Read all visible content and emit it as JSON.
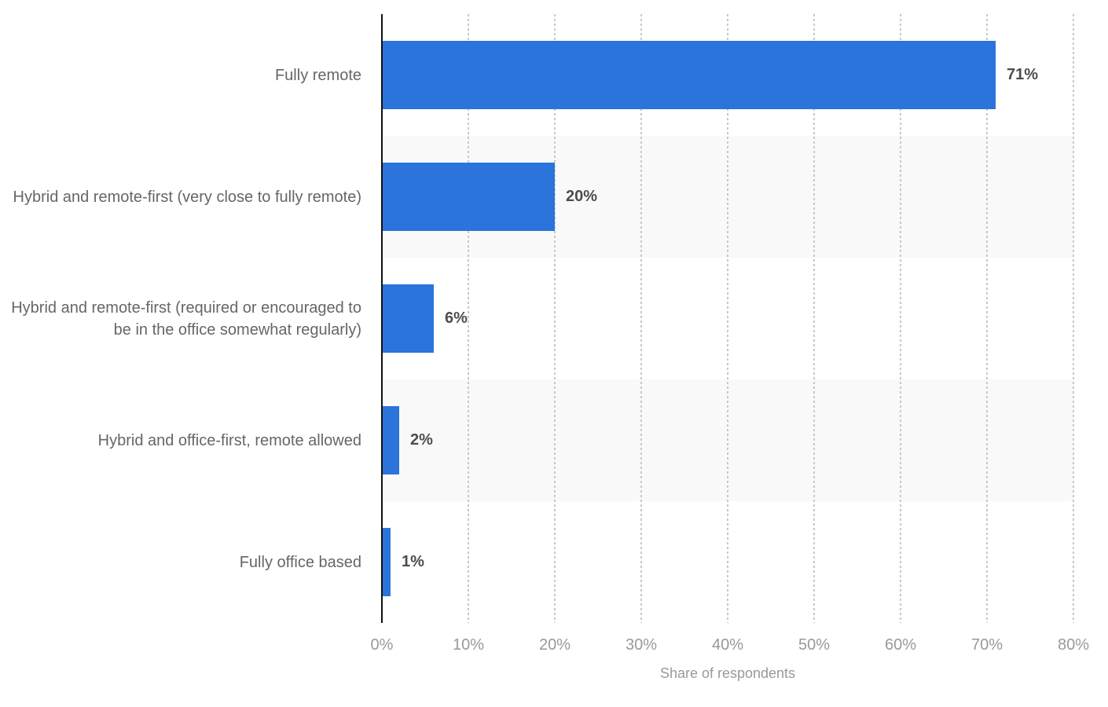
{
  "chart_data": {
    "type": "bar",
    "orientation": "horizontal",
    "title": "",
    "xlabel": "Share of respondents",
    "ylabel": "",
    "xlim": [
      0,
      80
    ],
    "x_tick_labels": [
      "0%",
      "10%",
      "20%",
      "30%",
      "40%",
      "50%",
      "60%",
      "70%",
      "80%"
    ],
    "grid": "vertical-dotted",
    "legend": "none",
    "categories": [
      "Fully remote",
      "Hybrid and remote-first (very close to fully remote)",
      "Hybrid and remote-first (required or encouraged to be in the office somewhat regularly)",
      "Hybrid and office-first, remote allowed",
      "Fully office based"
    ],
    "values": [
      71,
      20,
      6,
      2,
      1
    ],
    "value_labels": [
      "71%",
      "20%",
      "6%",
      "2%",
      "1%"
    ]
  },
  "style": {
    "bar_color": "#2a74db",
    "row_band_color": "#f9f9f9",
    "gridline_color": "#c8c8c8",
    "axis_line_color": "#111111",
    "category_label_color": "#666666",
    "value_label_color": "#4d4d4d",
    "tick_label_color": "#999999",
    "axis_title_color": "#999999",
    "background_color": "#ffffff"
  }
}
